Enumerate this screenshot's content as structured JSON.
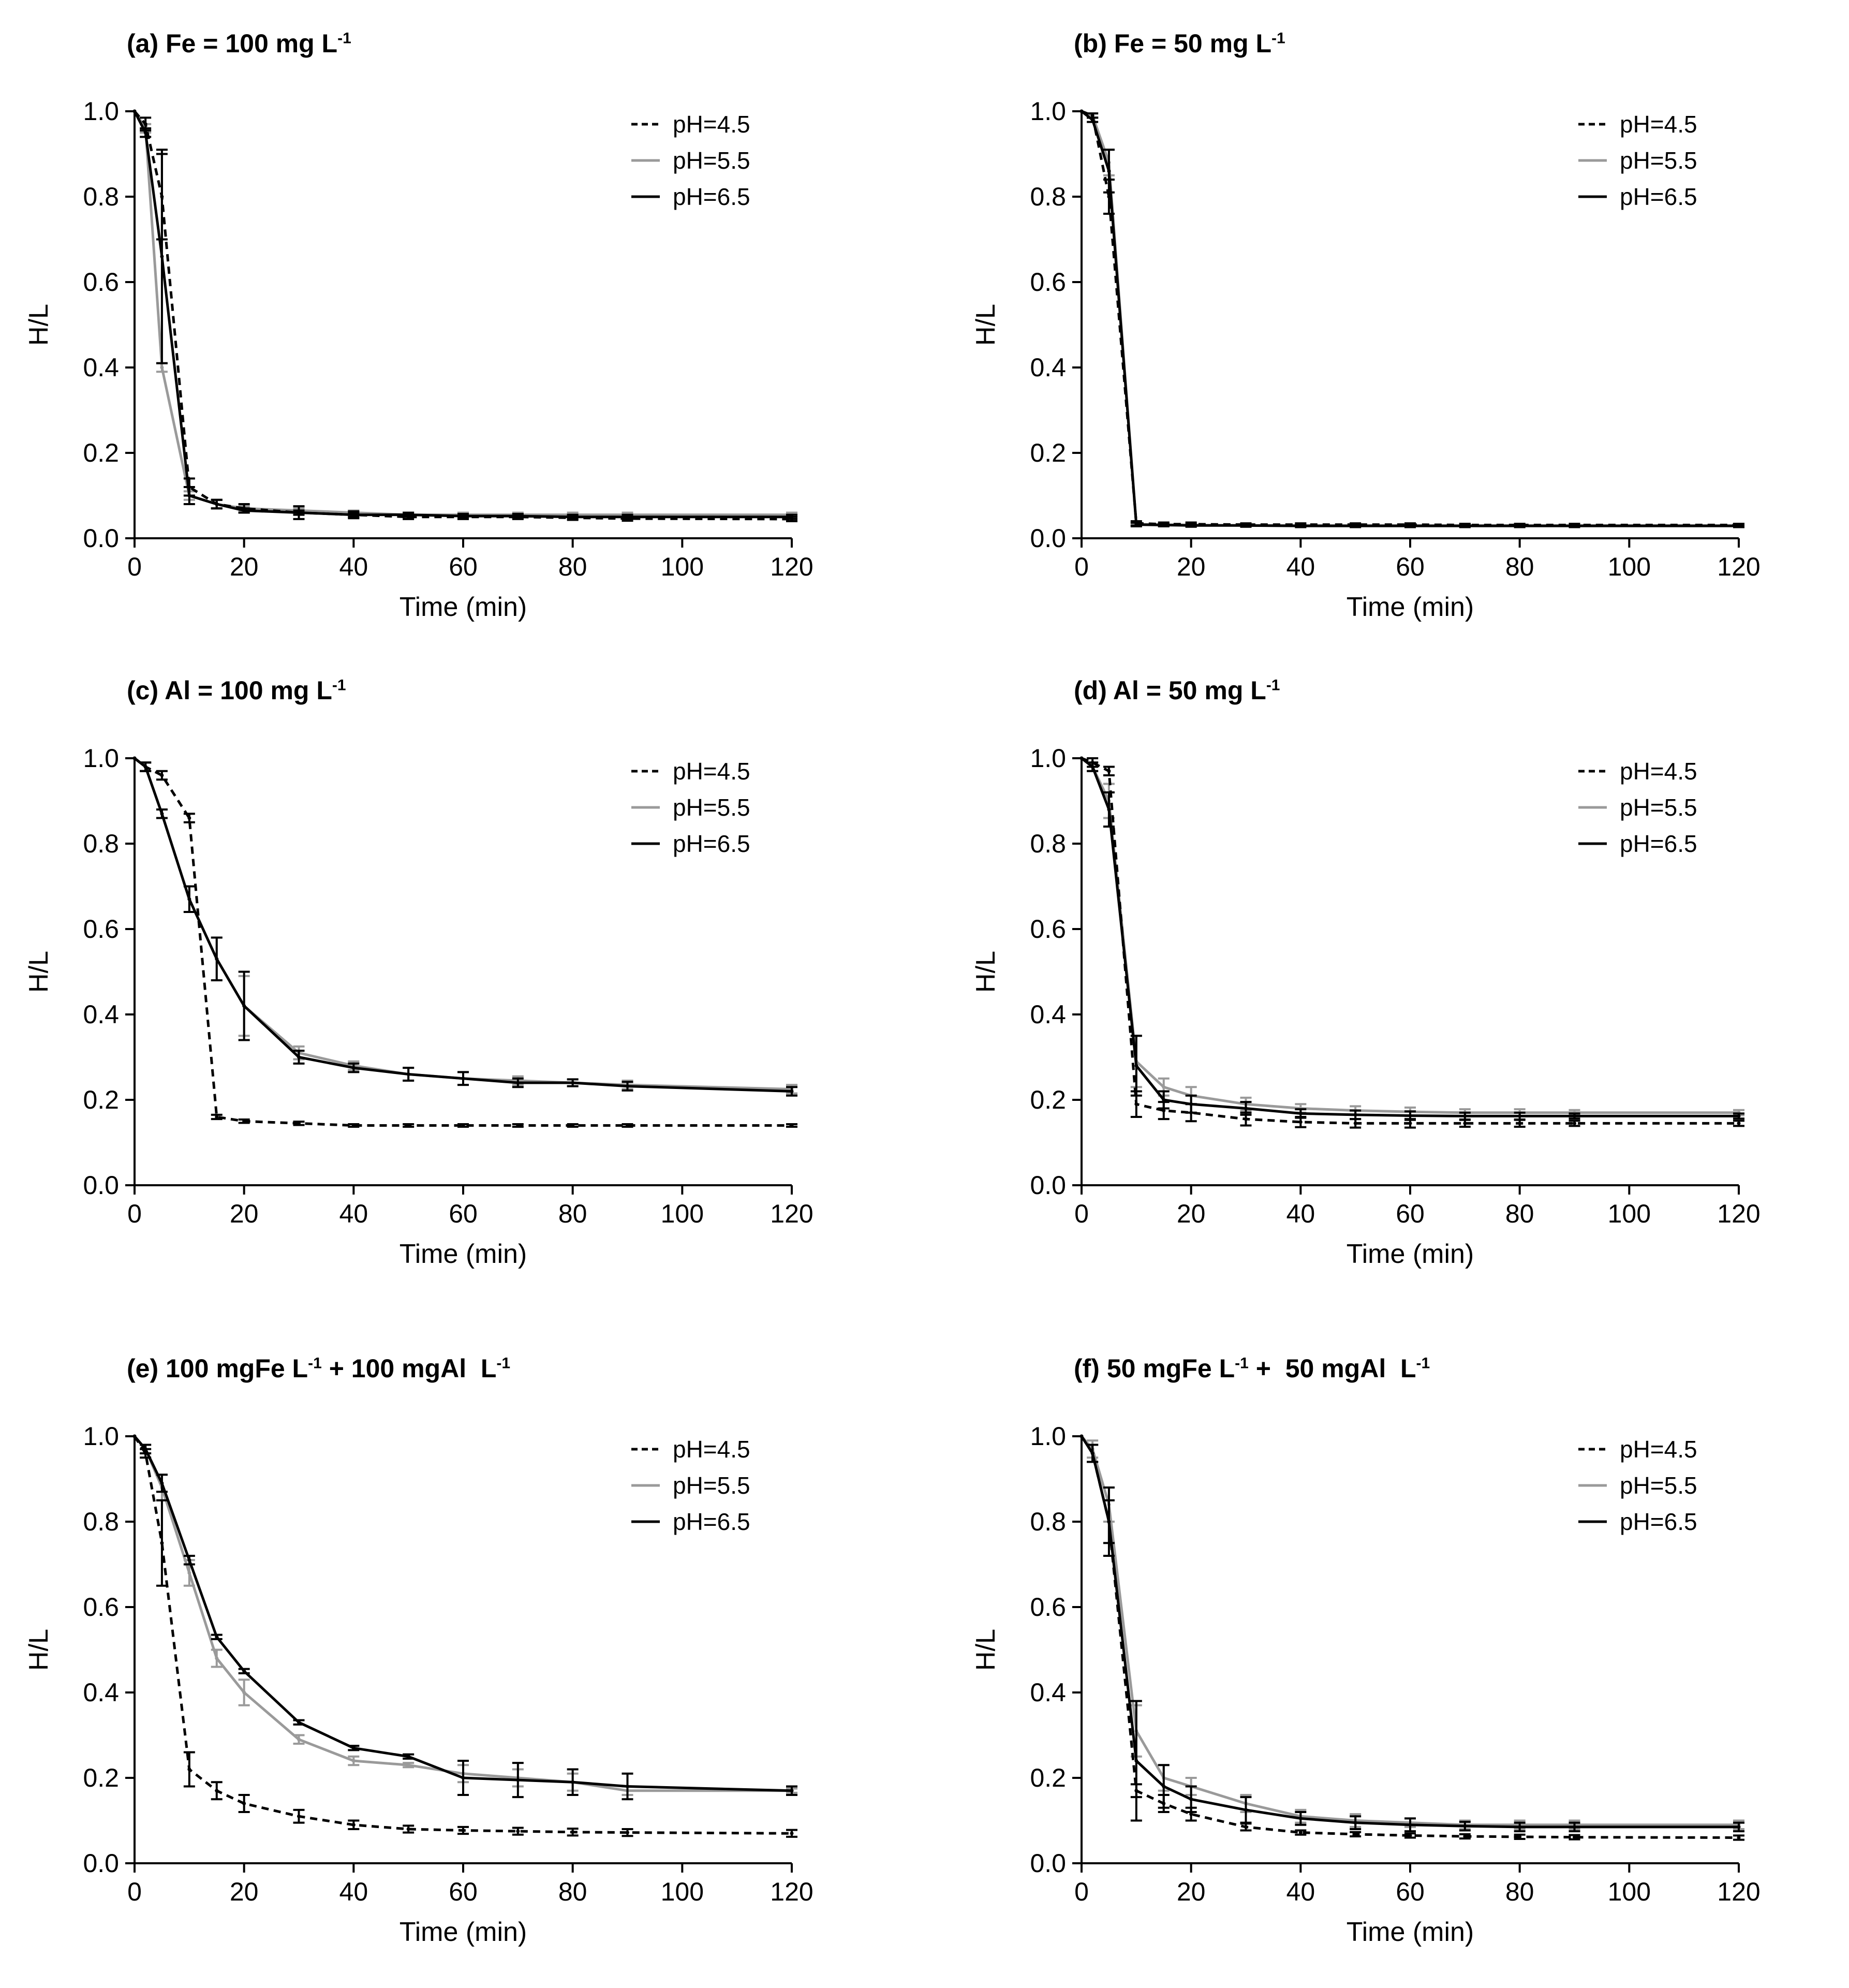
{
  "figure": {
    "colors": {
      "pH45": "#000000",
      "pH55": "#9a9a9a",
      "pH65": "#000000"
    }
  },
  "chart_data": [
    {
      "id": "a",
      "type": "line",
      "title": {
        "main": "(a) Fe = 100 mg L",
        "sup": "-1",
        "tail": ""
      },
      "xlabel": "Time (min)",
      "ylabel": "H/L",
      "xlim": [
        0,
        120
      ],
      "ylim": [
        0,
        1.0
      ],
      "xticks": [
        0,
        20,
        40,
        60,
        80,
        100,
        120
      ],
      "yticks": [
        "0.0",
        "0.2",
        "0.4",
        "0.6",
        "0.8",
        "1.0"
      ],
      "x": [
        0,
        2,
        5,
        10,
        15,
        20,
        30,
        40,
        50,
        60,
        70,
        80,
        90,
        120
      ],
      "series": [
        {
          "name": "pH=4.5",
          "style": "dashed",
          "color": "#000000",
          "values": [
            1.0,
            0.97,
            0.8,
            0.12,
            0.08,
            0.07,
            0.06,
            0.055,
            0.05,
            0.05,
            0.05,
            0.048,
            0.046,
            0.045
          ],
          "errors": [
            0,
            0.015,
            0.1,
            0.02,
            0.01,
            0.01,
            0.015,
            0.008,
            0.005,
            0.005,
            0.005,
            0.005,
            0.005,
            0.005
          ]
        },
        {
          "name": "pH=5.5",
          "style": "solid",
          "color": "#9a9a9a",
          "values": [
            1.0,
            0.96,
            0.4,
            0.1,
            0.08,
            0.07,
            0.065,
            0.06,
            0.055,
            0.055,
            0.055,
            0.055,
            0.055,
            0.055
          ],
          "errors": [
            0,
            0.01,
            0.01,
            0.01,
            0.01,
            0.005,
            0.005,
            0.005,
            0.005,
            0.005,
            0.005,
            0.005,
            0.005,
            0.005
          ]
        },
        {
          "name": "pH=6.5",
          "style": "solid",
          "color": "#000000",
          "values": [
            1.0,
            0.95,
            0.66,
            0.1,
            0.08,
            0.065,
            0.06,
            0.055,
            0.055,
            0.052,
            0.052,
            0.05,
            0.05,
            0.05
          ],
          "errors": [
            0,
            0.01,
            0.25,
            0.02,
            0.01,
            0.005,
            0.005,
            0.005,
            0.005,
            0.005,
            0.005,
            0.005,
            0.005,
            0.005
          ]
        }
      ]
    },
    {
      "id": "b",
      "type": "line",
      "title": {
        "main": "(b) Fe = 50 mg L",
        "sup": "-1",
        "tail": ""
      },
      "xlabel": "Time (min)",
      "ylabel": "H/L",
      "xlim": [
        0,
        120
      ],
      "ylim": [
        0,
        1.0
      ],
      "xticks": [
        0,
        20,
        40,
        60,
        80,
        100,
        120
      ],
      "yticks": [
        "0.0",
        "0.2",
        "0.4",
        "0.6",
        "0.8",
        "1.0"
      ],
      "x": [
        0,
        2,
        5,
        10,
        15,
        20,
        30,
        40,
        50,
        60,
        70,
        80,
        90,
        120
      ],
      "series": [
        {
          "name": "pH=4.5",
          "style": "dashed",
          "color": "#000000",
          "values": [
            1.0,
            0.99,
            0.8,
            0.035,
            0.033,
            0.033,
            0.032,
            0.032,
            0.032,
            0.032,
            0.031,
            0.031,
            0.031,
            0.031
          ],
          "errors": [
            0,
            0.005,
            0.04,
            0.005,
            0.004,
            0.004,
            0.003,
            0.003,
            0.003,
            0.003,
            0.003,
            0.003,
            0.003,
            0.003
          ]
        },
        {
          "name": "pH=5.5",
          "style": "solid",
          "color": "#9a9a9a",
          "values": [
            1.0,
            0.99,
            0.88,
            0.033,
            0.032,
            0.031,
            0.03,
            0.03,
            0.03,
            0.03,
            0.03,
            0.03,
            0.03,
            0.03
          ],
          "errors": [
            0,
            0.005,
            0.03,
            0.004,
            0.003,
            0.003,
            0.003,
            0.003,
            0.003,
            0.003,
            0.003,
            0.003,
            0.003,
            0.003
          ]
        },
        {
          "name": "pH=6.5",
          "style": "solid",
          "color": "#000000",
          "values": [
            1.0,
            0.98,
            0.86,
            0.032,
            0.031,
            0.03,
            0.03,
            0.029,
            0.029,
            0.029,
            0.029,
            0.029,
            0.029,
            0.029
          ],
          "errors": [
            0,
            0.005,
            0.05,
            0.004,
            0.003,
            0.003,
            0.003,
            0.003,
            0.003,
            0.003,
            0.003,
            0.003,
            0.003,
            0.003
          ]
        }
      ]
    },
    {
      "id": "c",
      "type": "line",
      "title": {
        "main": "(c) Al = 100 mg L",
        "sup": "-1",
        "tail": ""
      },
      "xlabel": "Time (min)",
      "ylabel": "H/L",
      "xlim": [
        0,
        120
      ],
      "ylim": [
        0,
        1.0
      ],
      "xticks": [
        0,
        20,
        40,
        60,
        80,
        100,
        120
      ],
      "yticks": [
        "0.0",
        "0.2",
        "0.4",
        "0.6",
        "0.8",
        "1.0"
      ],
      "x": [
        0,
        2,
        5,
        10,
        15,
        20,
        30,
        40,
        50,
        60,
        70,
        80,
        90,
        120
      ],
      "series": [
        {
          "name": "pH=4.5",
          "style": "dashed",
          "color": "#000000",
          "values": [
            1.0,
            0.98,
            0.96,
            0.86,
            0.16,
            0.15,
            0.145,
            0.14,
            0.14,
            0.14,
            0.14,
            0.14,
            0.14,
            0.14
          ],
          "errors": [
            0,
            0.01,
            0.01,
            0.01,
            0.005,
            0.004,
            0.004,
            0.003,
            0.003,
            0.003,
            0.003,
            0.003,
            0.003,
            0.003
          ]
        },
        {
          "name": "pH=5.5",
          "style": "solid",
          "color": "#9a9a9a",
          "values": [
            1.0,
            0.98,
            0.87,
            0.67,
            0.53,
            0.42,
            0.31,
            0.28,
            0.26,
            0.25,
            0.245,
            0.24,
            0.235,
            0.225
          ],
          "errors": [
            0,
            0.01,
            0.01,
            0.03,
            0.05,
            0.07,
            0.015,
            0.01,
            0.015,
            0.015,
            0.01,
            0.008,
            0.01,
            0.01
          ]
        },
        {
          "name": "pH=6.5",
          "style": "solid",
          "color": "#000000",
          "values": [
            1.0,
            0.98,
            0.87,
            0.67,
            0.53,
            0.42,
            0.3,
            0.275,
            0.26,
            0.25,
            0.24,
            0.24,
            0.232,
            0.22
          ],
          "errors": [
            0,
            0.01,
            0.01,
            0.03,
            0.05,
            0.08,
            0.015,
            0.01,
            0.015,
            0.015,
            0.01,
            0.008,
            0.01,
            0.01
          ]
        }
      ]
    },
    {
      "id": "d",
      "type": "line",
      "title": {
        "main": "(d) Al = 50 mg L",
        "sup": "-1",
        "tail": ""
      },
      "xlabel": "Time (min)",
      "ylabel": "H/L",
      "xlim": [
        0,
        120
      ],
      "ylim": [
        0,
        1.0
      ],
      "xticks": [
        0,
        20,
        40,
        60,
        80,
        100,
        120
      ],
      "yticks": [
        "0.0",
        "0.2",
        "0.4",
        "0.6",
        "0.8",
        "1.0"
      ],
      "x": [
        0,
        2,
        5,
        10,
        15,
        20,
        30,
        40,
        50,
        60,
        70,
        80,
        90,
        120
      ],
      "series": [
        {
          "name": "pH=4.5",
          "style": "dashed",
          "color": "#000000",
          "values": [
            1.0,
            0.99,
            0.97,
            0.19,
            0.175,
            0.17,
            0.155,
            0.148,
            0.145,
            0.145,
            0.145,
            0.145,
            0.145,
            0.145
          ],
          "errors": [
            0,
            0.01,
            0.01,
            0.03,
            0.02,
            0.02,
            0.015,
            0.012,
            0.01,
            0.01,
            0.008,
            0.008,
            0.006,
            0.006
          ]
        },
        {
          "name": "pH=5.5",
          "style": "solid",
          "color": "#9a9a9a",
          "values": [
            1.0,
            0.98,
            0.9,
            0.29,
            0.23,
            0.21,
            0.19,
            0.18,
            0.175,
            0.172,
            0.17,
            0.17,
            0.17,
            0.17
          ],
          "errors": [
            0,
            0.01,
            0.04,
            0.06,
            0.02,
            0.02,
            0.015,
            0.01,
            0.01,
            0.01,
            0.008,
            0.008,
            0.006,
            0.006
          ]
        },
        {
          "name": "pH=6.5",
          "style": "solid",
          "color": "#000000",
          "values": [
            1.0,
            0.98,
            0.88,
            0.28,
            0.2,
            0.19,
            0.18,
            0.168,
            0.165,
            0.163,
            0.162,
            0.162,
            0.162,
            0.162
          ],
          "errors": [
            0,
            0.01,
            0.04,
            0.07,
            0.02,
            0.02,
            0.015,
            0.01,
            0.01,
            0.01,
            0.008,
            0.008,
            0.006,
            0.006
          ]
        }
      ]
    },
    {
      "id": "e",
      "type": "line",
      "title": {
        "main": "(e) 100 mgFe L",
        "sup": "-1",
        "tail": " + 100 mgAl  L",
        "sup2": "-1"
      },
      "xlabel": "Time (min)",
      "ylabel": "H/L",
      "xlim": [
        0,
        120
      ],
      "ylim": [
        0,
        1.0
      ],
      "xticks": [
        0,
        20,
        40,
        60,
        80,
        100,
        120
      ],
      "yticks": [
        "0.0",
        "0.2",
        "0.4",
        "0.6",
        "0.8",
        "1.0"
      ],
      "x": [
        0,
        2,
        5,
        10,
        15,
        20,
        30,
        40,
        50,
        60,
        70,
        80,
        90,
        120
      ],
      "series": [
        {
          "name": "pH=4.5",
          "style": "dashed",
          "color": "#000000",
          "values": [
            1.0,
            0.96,
            0.75,
            0.22,
            0.17,
            0.14,
            0.11,
            0.09,
            0.08,
            0.077,
            0.075,
            0.073,
            0.072,
            0.07
          ],
          "errors": [
            0,
            0.01,
            0.1,
            0.04,
            0.02,
            0.02,
            0.015,
            0.01,
            0.008,
            0.008,
            0.008,
            0.008,
            0.008,
            0.008
          ]
        },
        {
          "name": "pH=5.5",
          "style": "solid",
          "color": "#9a9a9a",
          "values": [
            1.0,
            0.97,
            0.88,
            0.68,
            0.48,
            0.4,
            0.29,
            0.24,
            0.23,
            0.21,
            0.2,
            0.19,
            0.17,
            0.17
          ],
          "errors": [
            0,
            0.01,
            0.03,
            0.03,
            0.02,
            0.03,
            0.01,
            0.01,
            0.005,
            0.02,
            0.02,
            0.02,
            0.01,
            0.005
          ]
        },
        {
          "name": "pH=6.5",
          "style": "solid",
          "color": "#000000",
          "values": [
            1.0,
            0.97,
            0.89,
            0.71,
            0.53,
            0.45,
            0.33,
            0.27,
            0.25,
            0.2,
            0.195,
            0.19,
            0.18,
            0.17
          ],
          "errors": [
            0,
            0.01,
            0.02,
            0.01,
            0.005,
            0.005,
            0.005,
            0.005,
            0.005,
            0.04,
            0.04,
            0.03,
            0.03,
            0.01
          ]
        }
      ]
    },
    {
      "id": "f",
      "type": "line",
      "title": {
        "main": "(f) 50 mgFe L",
        "sup": "-1",
        "tail": " +  50 mgAl  L",
        "sup2": "-1"
      },
      "xlabel": "Time (min)",
      "ylabel": "H/L",
      "xlim": [
        0,
        120
      ],
      "ylim": [
        0,
        1.0
      ],
      "xticks": [
        0,
        20,
        40,
        60,
        80,
        100,
        120
      ],
      "yticks": [
        "0.0",
        "0.2",
        "0.4",
        "0.6",
        "0.8",
        "1.0"
      ],
      "x": [
        0,
        2,
        5,
        10,
        15,
        20,
        30,
        40,
        50,
        60,
        70,
        80,
        90,
        120
      ],
      "series": [
        {
          "name": "pH=4.5",
          "style": "dashed",
          "color": "#000000",
          "values": [
            1.0,
            0.96,
            0.8,
            0.17,
            0.14,
            0.115,
            0.085,
            0.072,
            0.068,
            0.065,
            0.063,
            0.062,
            0.061,
            0.06
          ],
          "errors": [
            0,
            0.02,
            0.05,
            0.015,
            0.02,
            0.015,
            0.008,
            0.005,
            0.005,
            0.005,
            0.005,
            0.005,
            0.005,
            0.005
          ]
        },
        {
          "name": "pH=5.5",
          "style": "solid",
          "color": "#9a9a9a",
          "values": [
            1.0,
            0.97,
            0.84,
            0.31,
            0.2,
            0.18,
            0.14,
            0.11,
            0.1,
            0.095,
            0.09,
            0.09,
            0.09,
            0.09
          ],
          "errors": [
            0,
            0.02,
            0.04,
            0.06,
            0.03,
            0.02,
            0.02,
            0.015,
            0.015,
            0.01,
            0.01,
            0.01,
            0.01,
            0.01
          ]
        },
        {
          "name": "pH=6.5",
          "style": "solid",
          "color": "#000000",
          "values": [
            1.0,
            0.96,
            0.8,
            0.24,
            0.18,
            0.15,
            0.125,
            0.105,
            0.095,
            0.09,
            0.087,
            0.085,
            0.085,
            0.085
          ],
          "errors": [
            0,
            0.02,
            0.08,
            0.14,
            0.05,
            0.03,
            0.03,
            0.015,
            0.015,
            0.015,
            0.01,
            0.01,
            0.01,
            0.01
          ]
        }
      ]
    }
  ]
}
